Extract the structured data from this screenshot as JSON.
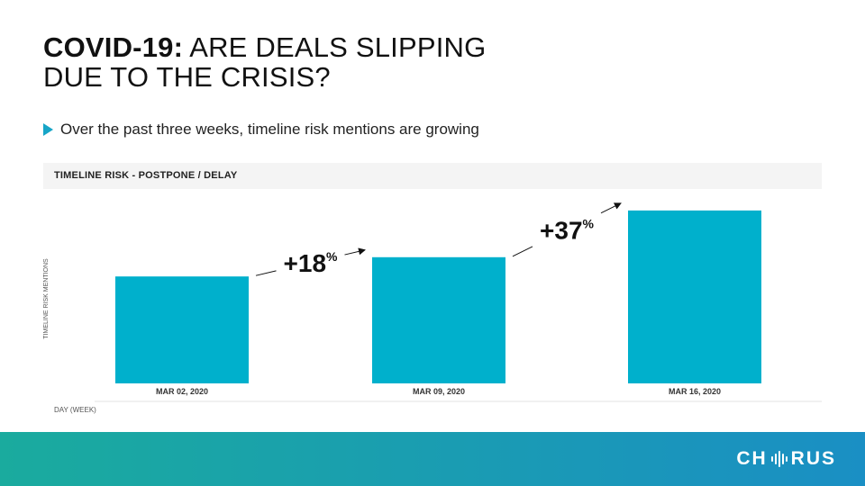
{
  "slide": {
    "title_bold": "COVID-19:",
    "title_rest": "ARE DEALS SLIPPING",
    "title_line2": "DUE TO THE CRISIS?",
    "bullet": "Over the past three weeks, timeline risk mentions are growing"
  },
  "chart_data": {
    "type": "bar",
    "title": "TIMELINE RISK - POSTPONE / DELAY",
    "xlabel": "DAY (WEEK)",
    "ylabel": "TIMELINE RISK MENTIONS",
    "categories": [
      "MAR 02, 2020",
      "MAR 09, 2020",
      "MAR 16, 2020"
    ],
    "values": [
      100,
      118,
      161.7
    ],
    "ylim": [
      0,
      170
    ],
    "grid": false,
    "bar_color": "#00b0cc",
    "annotations": [
      {
        "text": "+18",
        "suffix": "%",
        "from": 0,
        "to": 1
      },
      {
        "text": "+37",
        "suffix": "%",
        "from": 1,
        "to": 2
      }
    ]
  },
  "footer": {
    "logo_left": "CH",
    "logo_right": "RUS",
    "brand_color": "#1a9ab5"
  }
}
